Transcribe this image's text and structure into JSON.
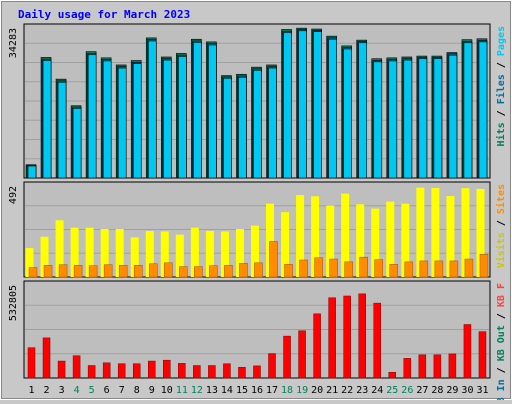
{
  "chart_data": {
    "type": "bar",
    "title": "Daily usage for March 2023",
    "categories": [
      "1",
      "2",
      "3",
      "4",
      "5",
      "6",
      "7",
      "8",
      "9",
      "10",
      "11",
      "12",
      "13",
      "14",
      "15",
      "16",
      "17",
      "18",
      "19",
      "20",
      "21",
      "22",
      "23",
      "24",
      "25",
      "26",
      "27",
      "28",
      "29",
      "30",
      "31"
    ],
    "weekend_days": [
      "4",
      "5",
      "11",
      "12",
      "18",
      "19",
      "25",
      "26"
    ],
    "panels": [
      {
        "id": "hits",
        "ymax_label": "34283",
        "ymax": 34283,
        "legend": [
          {
            "text": "Hits",
            "color": "#00805c"
          },
          {
            "text": "Files",
            "color": "#0070a0"
          },
          {
            "text": "Pages",
            "color": "#00c8f0"
          }
        ],
        "series": [
          {
            "name": "Hits",
            "color": "#00805c",
            "values": [
              3000,
              27200,
              22300,
              16300,
              28500,
              27100,
              25500,
              26500,
              31600,
              27300,
              28100,
              31300,
              30700,
              23100,
              23400,
              25000,
              25500,
              33500,
              33800,
              33600,
              32000,
              29800,
              31100,
              26900,
              27100,
              27300,
              27500,
              27500,
              28300,
              31200,
              31400
            ]
          },
          {
            "name": "Files",
            "color": "#0070a0",
            "values": [
              2900,
              26800,
              21900,
              16000,
              28100,
              26700,
              25100,
              26100,
              31200,
              26900,
              27700,
              30900,
              30300,
              22800,
              23000,
              24600,
              25100,
              33100,
              33500,
              33300,
              31600,
              29400,
              30800,
              26500,
              26700,
              26900,
              27200,
              27200,
              28000,
              30800,
              31000
            ]
          },
          {
            "name": "Pages",
            "color": "#00c8f0",
            "values": [
              2700,
              26500,
              21600,
              15700,
              27800,
              26400,
              24800,
              25800,
              30900,
              26600,
              27400,
              30600,
              30000,
              22500,
              22700,
              24300,
              24800,
              32800,
              33200,
              33000,
              31300,
              29100,
              30500,
              26200,
              26400,
              26600,
              26900,
              26900,
              27700,
              30500,
              30700
            ]
          }
        ]
      },
      {
        "id": "visits",
        "ymax_label": "492",
        "ymax": 492,
        "legend": [
          {
            "text": "Visits",
            "color": "#c8c800"
          },
          {
            "text": "Sites",
            "color": "#ff8c00"
          }
        ],
        "series": [
          {
            "name": "Visits",
            "color": "#ffff00",
            "values": [
              153,
              213,
              300,
              261,
              261,
              254,
              254,
              210,
              243,
              241,
              224,
              261,
              244,
              241,
              254,
              272,
              388,
              343,
              433,
              427,
              378,
              441,
              385,
              362,
              399,
              388,
              473,
              471,
              428,
              470,
              466
            ]
          },
          {
            "name": "Sites",
            "color": "#ff8c00",
            "values": [
              50,
              62,
              65,
              62,
              60,
              65,
              62,
              62,
              70,
              75,
              55,
              55,
              60,
              62,
              72,
              75,
              188,
              67,
              90,
              102,
              95,
              80,
              105,
              92,
              67,
              80,
              85,
              85,
              85,
              95,
              120
            ]
          }
        ]
      },
      {
        "id": "kbytes",
        "ymax_label": "532805",
        "ymax": 532805,
        "legend": [
          {
            "text": "KB In",
            "color": "#0070a0"
          },
          {
            "text": "KB Out",
            "color": "#00805c"
          },
          {
            "text": "KB F",
            "color": "#ff4040"
          }
        ],
        "series": [
          {
            "name": "KB F",
            "color": "#ff0000",
            "values": [
              170000,
              225000,
              95000,
              125000,
              70000,
              85000,
              80000,
              80000,
              95000,
              100000,
              82000,
              70000,
              70000,
              80000,
              60000,
              68000,
              137000,
              235000,
              265000,
              360000,
              450000,
              460000,
              472000,
              420000,
              32000,
              110000,
              130000,
              130000,
              135000,
              300000,
              260000
            ]
          }
        ]
      }
    ]
  },
  "colors": {
    "background": "#c8c8c8",
    "plot_background": "#bebebe",
    "grid": "#a0a0a0",
    "title": "#0000ff",
    "axis_text": "#000000",
    "weekend_text": "#00805c"
  }
}
